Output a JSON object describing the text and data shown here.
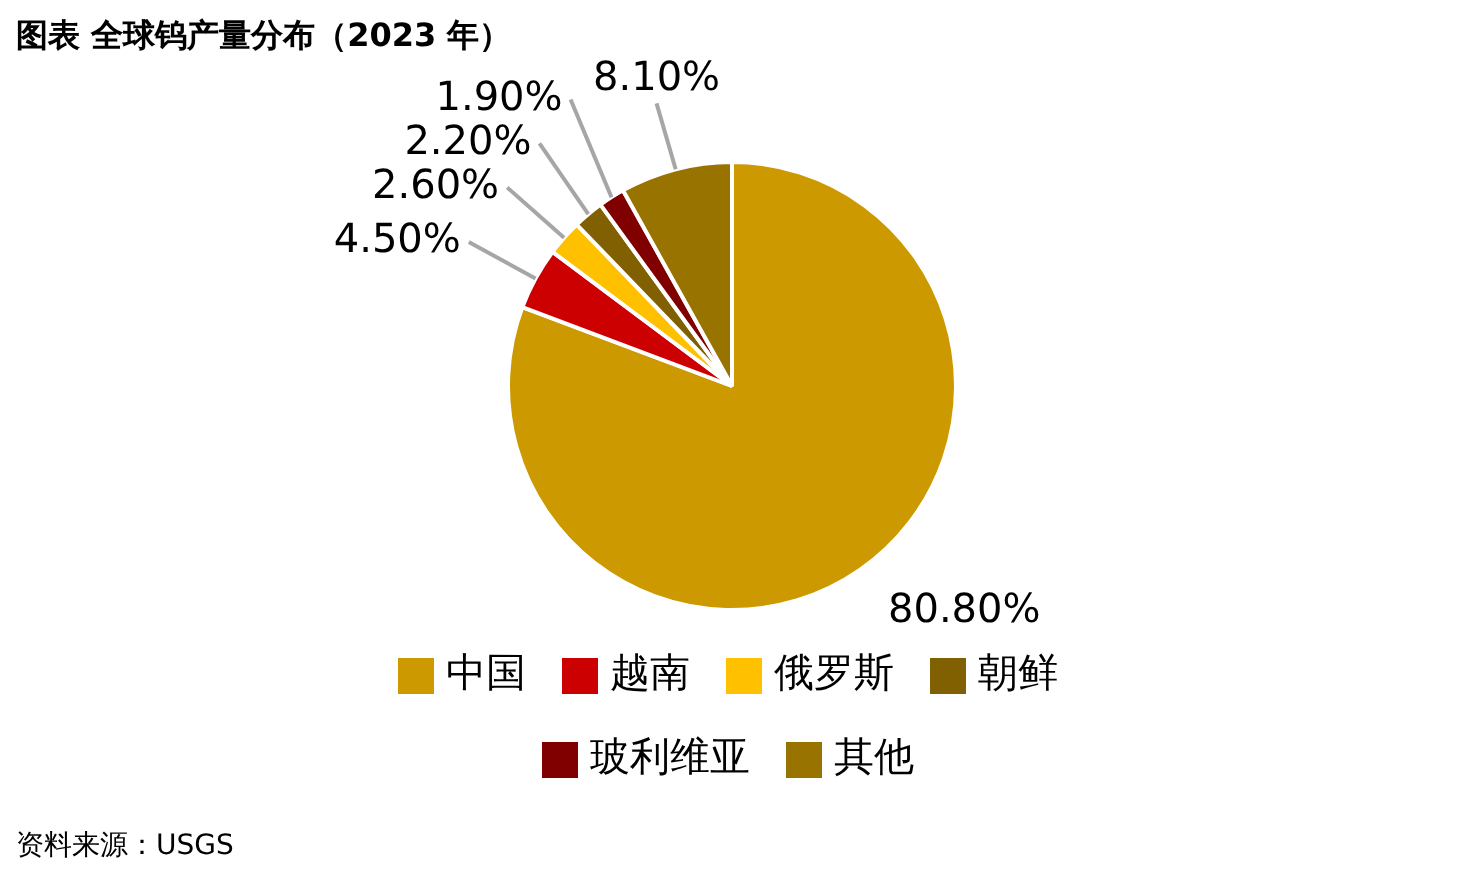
{
  "chart_data": {
    "type": "pie",
    "title": "图表 全球钨产量分布（2023 年）",
    "categories": [
      "中国",
      "越南",
      "俄罗斯",
      "朝鲜",
      "玻利维亚",
      "其他"
    ],
    "values": [
      80.8,
      4.5,
      2.6,
      2.2,
      1.9,
      8.1
    ],
    "value_labels": [
      "80.80%",
      "4.50%",
      "2.60%",
      "2.20%",
      "1.90%",
      "8.10%"
    ],
    "colors": [
      "#cc9900",
      "#cc0000",
      "#ffc000",
      "#806000",
      "#800000",
      "#997300"
    ],
    "legend": "bottom",
    "annotations": [
      "资料来源：USGS"
    ]
  }
}
